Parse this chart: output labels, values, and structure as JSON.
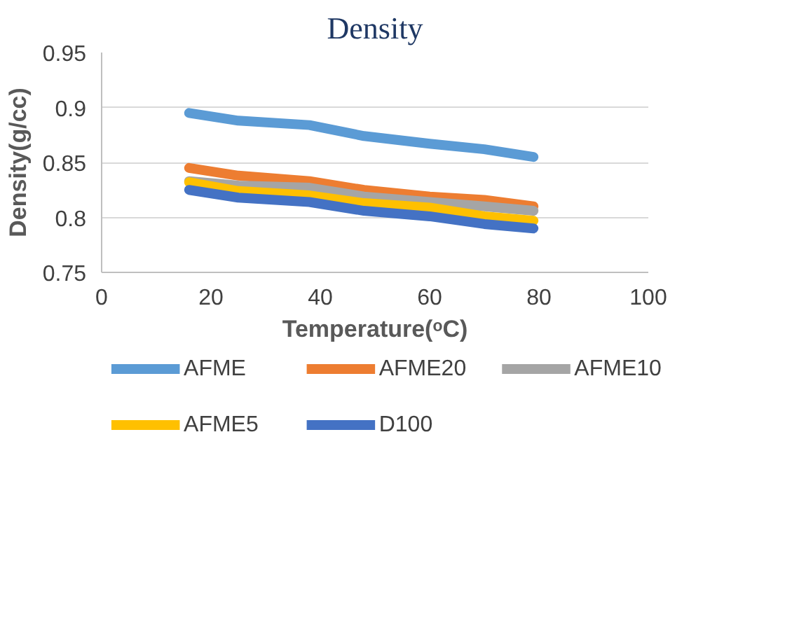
{
  "chart_data": {
    "type": "line",
    "title": "Density",
    "xlabel": "Temperature(ᵒC)",
    "ylabel": "Density(g/cc)",
    "x": [
      16,
      25,
      38,
      48,
      60,
      70,
      79
    ],
    "series": [
      {
        "name": "AFME",
        "color": "#5b9bd5",
        "values": [
          0.895,
          0.888,
          0.884,
          0.874,
          0.867,
          0.862,
          0.855
        ]
      },
      {
        "name": "AFME20",
        "color": "#ed7d31",
        "values": [
          0.845,
          0.838,
          0.833,
          0.825,
          0.819,
          0.816,
          0.81
        ]
      },
      {
        "name": "AFME10",
        "color": "#a5a5a5",
        "values": [
          0.833,
          0.829,
          0.827,
          0.819,
          0.814,
          0.81,
          0.806
        ]
      },
      {
        "name": "AFME5",
        "color": "#ffc000",
        "values": [
          0.832,
          0.824,
          0.82,
          0.813,
          0.809,
          0.801,
          0.797
        ]
      },
      {
        "name": "D100",
        "color": "#4472c4",
        "values": [
          0.825,
          0.818,
          0.814,
          0.806,
          0.801,
          0.794,
          0.79
        ]
      }
    ],
    "xlim": [
      0,
      100
    ],
    "xticks": [
      0,
      20,
      40,
      60,
      80,
      100
    ],
    "ylim": [
      0.75,
      0.95
    ],
    "yticks": [
      {
        "value": 0.75,
        "label": "0.75"
      },
      {
        "value": 0.8,
        "label": "0.8"
      },
      {
        "value": 0.85,
        "label": "0.85"
      },
      {
        "value": 0.9,
        "label": "0.9"
      },
      {
        "value": 0.95,
        "label": "0.95"
      }
    ],
    "grid": "y",
    "legend": "bottom",
    "marker": "none",
    "line_style": "solid"
  }
}
